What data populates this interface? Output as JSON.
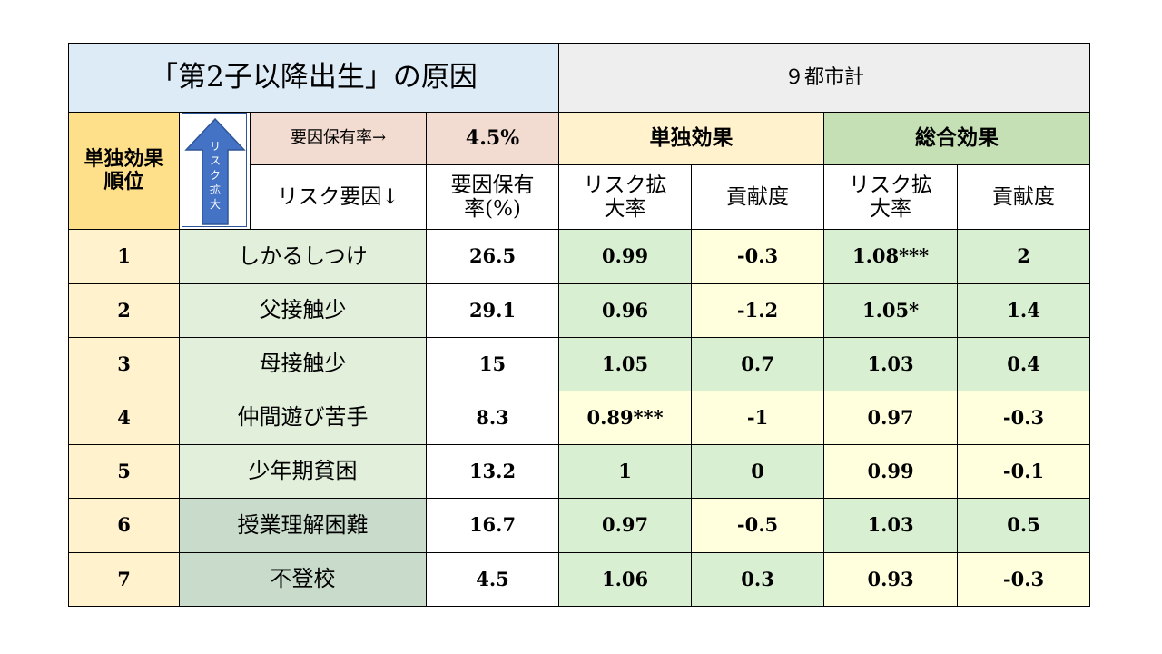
{
  "header": {
    "title": "「第2子以降出生」の原因",
    "city": "９都市計"
  },
  "subheader": {
    "rank_label": "単独効果\n順位",
    "arrow_text": "リスク拡大",
    "holding_rate_label": "要因保有率→",
    "holding_rate_value": "4.5%",
    "solo_effect": "単独効果",
    "total_effect": "総合効果",
    "risk_factor_label": "リスク要因↓",
    "holding_rate_pct": "要因保有\n率(%)",
    "solo_risk_ratio": "リスク拡\n大率",
    "solo_contribution": "貢献度",
    "total_risk_ratio": "リスク拡\n大率",
    "total_contribution": "貢献度"
  },
  "colors": {
    "title_bg": "#ddebf7",
    "rank_header_bg": "#ffe08a",
    "holding_bg": "#f2dbd0",
    "solo_bg": "#fff2cc",
    "total_bg": "#c5e0b4",
    "cell_green": "#d9efd2",
    "cell_yellow": "#ffffde",
    "arrow": "#4472c4"
  },
  "icons": {
    "arrow": "up-arrow-icon"
  },
  "rows": [
    {
      "rank": "1",
      "factor": "しかるしつけ",
      "rate": "26.5",
      "solo_ratio": "0.99",
      "solo_contrib": "-0.3",
      "total_ratio": "1.08***",
      "total_contrib": "2"
    },
    {
      "rank": "2",
      "factor": "父接触少",
      "rate": "29.1",
      "solo_ratio": "0.96",
      "solo_contrib": "-1.2",
      "total_ratio": "1.05*",
      "total_contrib": "1.4"
    },
    {
      "rank": "3",
      "factor": "母接触少",
      "rate": "15",
      "solo_ratio": "1.05",
      "solo_contrib": "0.7",
      "total_ratio": "1.03",
      "total_contrib": "0.4"
    },
    {
      "rank": "4",
      "factor": "仲間遊び苦手",
      "rate": "8.3",
      "solo_ratio": "0.89***",
      "solo_contrib": "-1",
      "total_ratio": "0.97",
      "total_contrib": "-0.3"
    },
    {
      "rank": "5",
      "factor": "少年期貧困",
      "rate": "13.2",
      "solo_ratio": "1",
      "solo_contrib": "0",
      "total_ratio": "0.99",
      "total_contrib": "-0.1"
    },
    {
      "rank": "6",
      "factor": "授業理解困難",
      "rate": "16.7",
      "solo_ratio": "0.97",
      "solo_contrib": "-0.5",
      "total_ratio": "1.03",
      "total_contrib": "0.5"
    },
    {
      "rank": "7",
      "factor": "不登校",
      "rate": "4.5",
      "solo_ratio": "1.06",
      "solo_contrib": "0.3",
      "total_ratio": "0.93",
      "total_contrib": "-0.3"
    }
  ]
}
